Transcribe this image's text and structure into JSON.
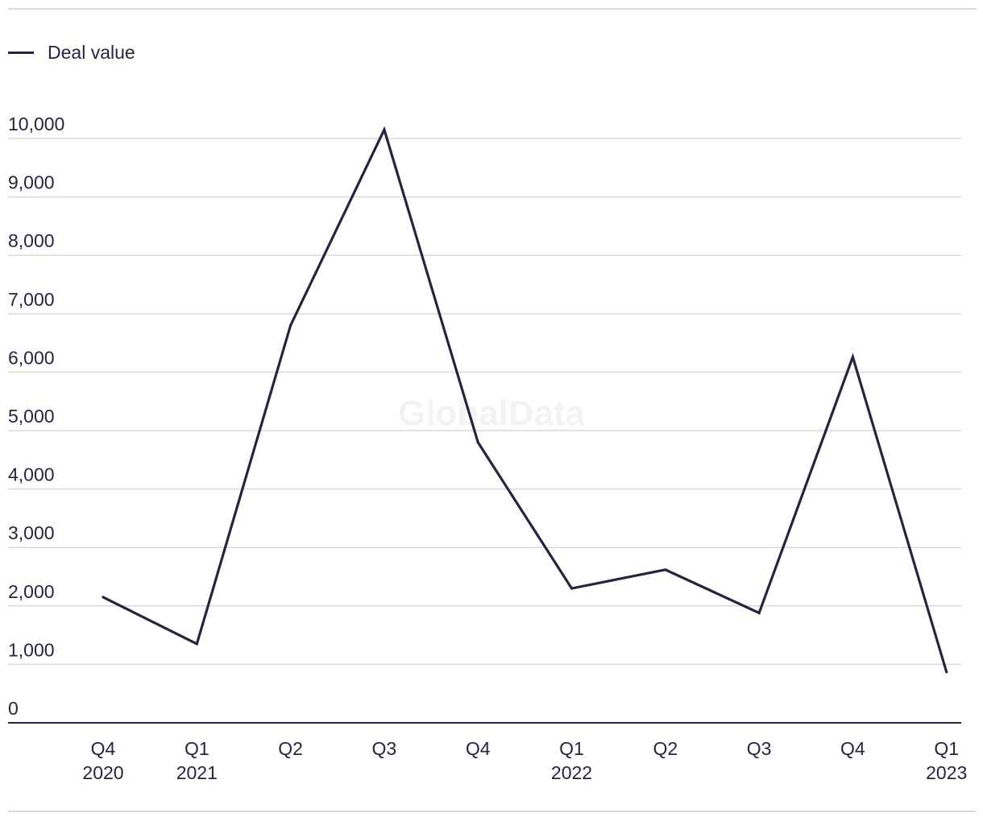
{
  "legend": {
    "label": "Deal value"
  },
  "watermark": "GlobalData",
  "colors": {
    "series": "#26243f",
    "grid": "#d9d9d9",
    "axis": "#26243f"
  },
  "chart_data": {
    "type": "line",
    "title": "",
    "xlabel": "",
    "ylabel": "",
    "categories": [
      [
        "Q4",
        "2020"
      ],
      [
        "Q1",
        "2021"
      ],
      [
        "Q2",
        ""
      ],
      [
        "Q3",
        ""
      ],
      [
        "Q4",
        ""
      ],
      [
        "Q1",
        "2022"
      ],
      [
        "Q2",
        ""
      ],
      [
        "Q3",
        ""
      ],
      [
        "Q4",
        ""
      ],
      [
        "Q1",
        "2023"
      ]
    ],
    "series": [
      {
        "name": "Deal value",
        "values": [
          2150,
          1350,
          6800,
          10150,
          4800,
          2300,
          2620,
          1880,
          6260,
          870
        ]
      }
    ],
    "ylim": [
      0,
      10000
    ],
    "yticks": [
      0,
      1000,
      2000,
      3000,
      4000,
      5000,
      6000,
      7000,
      8000,
      9000,
      10000
    ],
    "ytick_labels": [
      "0",
      "1,000",
      "2,000",
      "3,000",
      "4,000",
      "5,000",
      "6,000",
      "7,000",
      "8,000",
      "9,000",
      "10,000"
    ],
    "grid": true,
    "legend_position": "top-left"
  }
}
